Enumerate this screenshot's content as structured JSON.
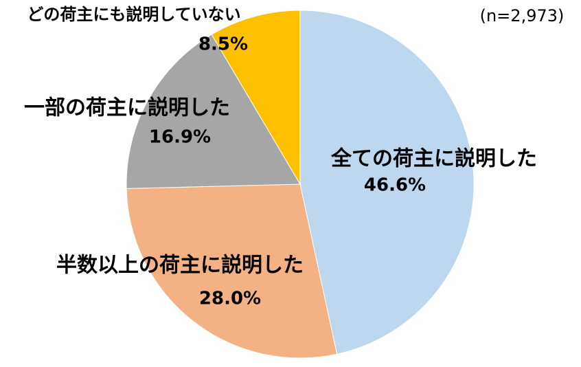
{
  "chart_data": {
    "type": "pie",
    "note": "(n=2,973)",
    "categories": [
      "全ての荷主に説明した",
      "半数以上の荷主に説明した",
      "一部の荷主に説明した",
      "どの荷主にも説明していない"
    ],
    "values": [
      46.6,
      28.0,
      16.9,
      8.5
    ],
    "value_labels": [
      "46.6%",
      "28.0%",
      "16.9%",
      "8.5%"
    ],
    "colors": [
      "#bdd7ee",
      "#f4b183",
      "#a6a6a6",
      "#ffc000"
    ],
    "start_angle": 90,
    "direction": "clockwise"
  }
}
